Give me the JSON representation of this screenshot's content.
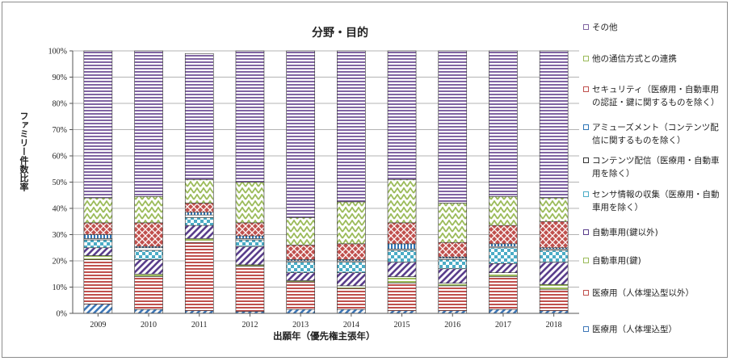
{
  "chart_data": {
    "type": "bar",
    "stacked": true,
    "title": "分野・目的",
    "xlabel": "出願年（優先権主張年）",
    "ylabel": "ファミリー件数比率",
    "ylim": [
      0,
      100
    ],
    "yticks": [
      "0%",
      "10%",
      "20%",
      "30%",
      "40%",
      "50%",
      "60%",
      "70%",
      "80%",
      "90%",
      "100%"
    ],
    "categories": [
      "2009",
      "2010",
      "2011",
      "2012",
      "2013",
      "2014",
      "2015",
      "2016",
      "2017",
      "2018"
    ],
    "legend_position": "right",
    "series": [
      {
        "name": "医療用（人体埋込型）",
        "color": "#3f78b8",
        "pattern": "diag",
        "values": [
          3.5,
          1.5,
          1,
          0.7,
          1.5,
          1.5,
          1,
          1,
          1.5,
          1
        ]
      },
      {
        "name": "医療用（人体埋込型以外）",
        "color": "#c0504d",
        "pattern": "hlines",
        "values": [
          17,
          12.5,
          26,
          17.3,
          10.5,
          8,
          10.5,
          9.5,
          12.5,
          8
        ]
      },
      {
        "name": "自動車用(鍵)",
        "color": "#9bbb59",
        "pattern": "hlines",
        "values": [
          1.5,
          1,
          1.5,
          0.5,
          0.5,
          1,
          2.5,
          1,
          1.5,
          2
        ]
      },
      {
        "name": "自動車用(鍵以外)",
        "color": "#5a3e8c",
        "pattern": "diag",
        "values": [
          3,
          5.5,
          5,
          7,
          3,
          5,
          5.5,
          5.5,
          3.5,
          8.5
        ]
      },
      {
        "name": "センサ情報の収集（医療用・自動車用を除く）",
        "color": "#4bacc6",
        "pattern": "checker",
        "values": [
          3,
          3.5,
          3,
          2.5,
          4,
          4,
          4.5,
          3.5,
          6,
          4.5
        ]
      },
      {
        "name": "コンテンツ配信（医療用・自動車用を除く）",
        "color": "#8a8a8a",
        "pattern": "none",
        "values": [
          0.5,
          1,
          1,
          0.5,
          0.5,
          0.5,
          0.5,
          0.5,
          0.5,
          0.5
        ]
      },
      {
        "name": "アミューズメント（コンテンツ配信に関するものを除く）",
        "color": "#2e75b6",
        "pattern": "vlines",
        "values": [
          1.5,
          0.5,
          1,
          1,
          0.5,
          0.5,
          2,
          0.5,
          1,
          0.5
        ]
      },
      {
        "name": "セキュリティ（医療用・自動車用の認証・鍵に関するものを除く）",
        "color": "#c0504d",
        "pattern": "cross",
        "values": [
          4.5,
          9,
          3.5,
          5,
          5.5,
          6,
          8,
          5.5,
          7,
          10
        ]
      },
      {
        "name": "他の通信方式との連携",
        "color": "#9bbb59",
        "pattern": "zigzag",
        "values": [
          9.5,
          10,
          9,
          15.5,
          10.5,
          16,
          16.5,
          15,
          11,
          9
        ]
      },
      {
        "name": "その他",
        "color": "#8064a2",
        "pattern": "hlines",
        "values": [
          56,
          55.5,
          48,
          50,
          63.5,
          57.5,
          49,
          58,
          55.5,
          56
        ]
      }
    ]
  }
}
